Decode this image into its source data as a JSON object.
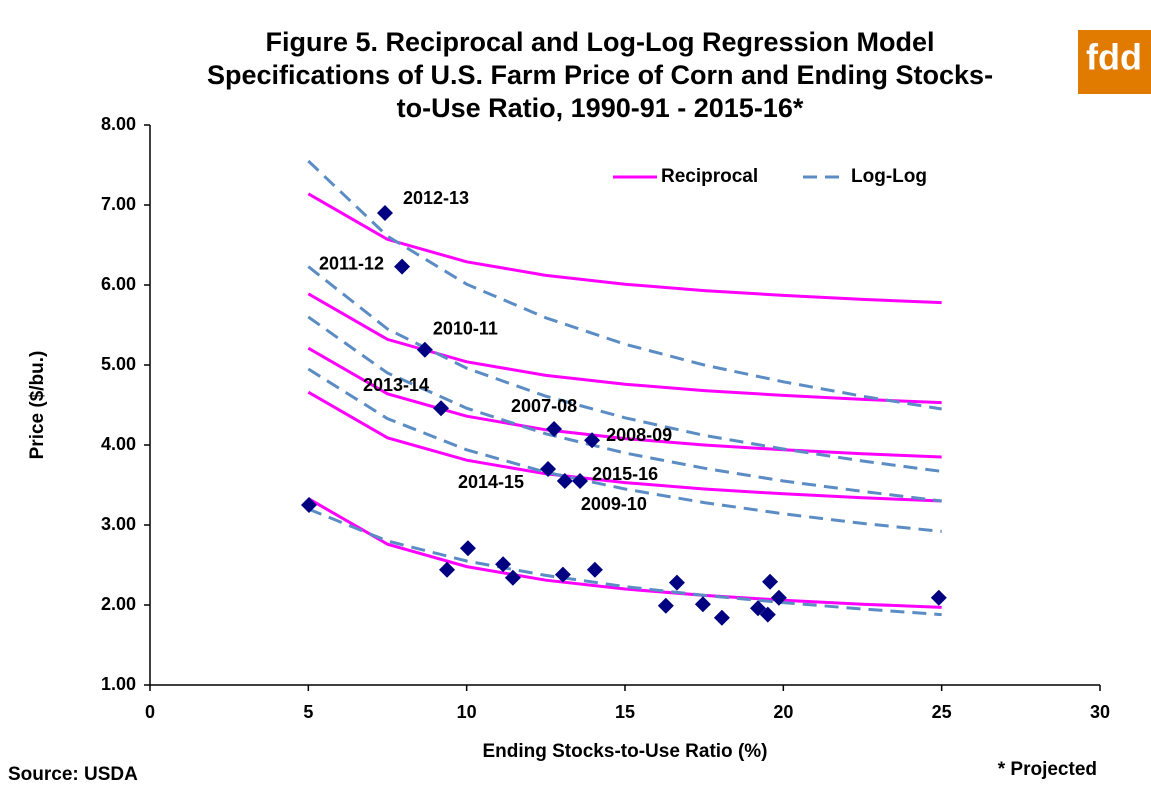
{
  "chart_data": {
    "type": "scatter",
    "title": [
      "Figure 5. Reciprocal and Log-Log Regression Model",
      "Specifications of U.S. Farm Price of Corn and Ending Stocks-",
      "to-Use Ratio, 1990-91 - 2015-16*"
    ],
    "xlabel": "Ending Stocks-to-Use Ratio (%)",
    "ylabel": "Price ($/bu.)",
    "xlim": [
      0,
      30
    ],
    "xticks": [
      0,
      5,
      10,
      15,
      20,
      25,
      30
    ],
    "ylim": [
      1,
      8
    ],
    "yticks": [
      {
        "value": 1,
        "label": "1.00"
      },
      {
        "value": 2,
        "label": "2.00"
      },
      {
        "value": 3,
        "label": "3.00"
      },
      {
        "value": 4,
        "label": "4.00"
      },
      {
        "value": 5,
        "label": "5.00"
      },
      {
        "value": 6,
        "label": "6.00"
      },
      {
        "value": 7,
        "label": "7.00"
      },
      {
        "value": 8,
        "label": "8.00"
      }
    ],
    "grid": false,
    "legend": "upper right",
    "curve_x": [
      5,
      7.5,
      10,
      12.5,
      15,
      17.5,
      20,
      22.5,
      25
    ],
    "curves": [
      {
        "name": "Reciprocal",
        "color": "#ff00ff",
        "dashed": false,
        "values": [
          [
            7.14,
            6.57,
            6.29,
            6.12,
            6.01,
            5.93,
            5.87,
            5.82,
            5.78
          ],
          [
            5.89,
            5.32,
            5.04,
            4.87,
            4.76,
            4.68,
            4.62,
            4.57,
            4.53
          ],
          [
            5.21,
            4.64,
            4.36,
            4.19,
            4.08,
            4.0,
            3.94,
            3.89,
            3.85
          ],
          [
            4.66,
            4.09,
            3.81,
            3.64,
            3.53,
            3.45,
            3.39,
            3.34,
            3.3
          ],
          [
            3.33,
            2.76,
            2.48,
            2.31,
            2.2,
            2.12,
            2.06,
            2.01,
            1.97
          ]
        ]
      },
      {
        "name": "Log-Log",
        "color": "#5b8cc4",
        "dashed": true,
        "values": [
          [
            7.55,
            6.61,
            6.01,
            5.59,
            5.26,
            5.0,
            4.79,
            4.61,
            4.45
          ],
          [
            6.23,
            5.45,
            4.96,
            4.61,
            4.34,
            4.12,
            3.95,
            3.8,
            3.67
          ],
          [
            5.6,
            4.9,
            4.46,
            4.14,
            3.9,
            3.71,
            3.55,
            3.42,
            3.3
          ],
          [
            4.95,
            4.33,
            3.94,
            3.66,
            3.45,
            3.28,
            3.14,
            3.02,
            2.92
          ],
          [
            3.2,
            2.8,
            2.55,
            2.37,
            2.23,
            2.12,
            2.03,
            1.95,
            1.88
          ]
        ]
      }
    ],
    "points": {
      "color": "#000080",
      "x": [
        7.42,
        7.96,
        8.68,
        9.19,
        12.76,
        13.96,
        12.57,
        13.1,
        13.58,
        5.02,
        9.38,
        10.04,
        11.15,
        11.46,
        13.04,
        14.05,
        16.29,
        16.64,
        17.46,
        18.06,
        19.2,
        19.51,
        19.58,
        19.86,
        24.91
      ],
      "y": [
        6.9,
        6.23,
        5.19,
        4.46,
        4.2,
        4.06,
        3.7,
        3.55,
        3.55,
        3.25,
        2.44,
        2.71,
        2.51,
        2.34,
        2.38,
        2.44,
        1.99,
        2.28,
        2.01,
        1.84,
        1.96,
        1.88,
        2.29,
        2.09,
        2.09
      ]
    },
    "annotations": [
      {
        "text": "2012-13",
        "point": 0
      },
      {
        "text": "2011-12",
        "point": 1
      },
      {
        "text": "2010-11",
        "point": 2
      },
      {
        "text": "2013-14",
        "point": 3
      },
      {
        "text": "2007-08",
        "point": 4
      },
      {
        "text": "2008-09",
        "point": 5
      },
      {
        "text": "2014-15",
        "point": 6
      },
      {
        "text": "2009-10",
        "point": 7
      },
      {
        "text": "2015-16",
        "point": 8
      }
    ],
    "source": "Source: USDA",
    "footnote": "* Projected",
    "logo": "fdd"
  }
}
